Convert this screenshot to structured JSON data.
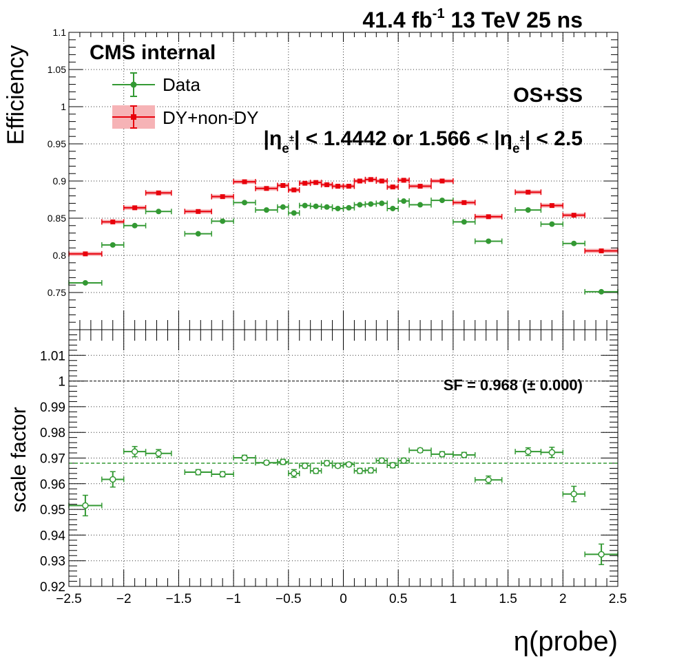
{
  "header": {
    "lumi_value": "41.4 fb",
    "lumi_exp": "-1",
    "lumi_rest": " 13 TeV 25 ns",
    "cms_label": "CMS internal",
    "os_ss_label": "OS+SS",
    "region_part1": "|η",
    "region_sub1": "e",
    "region_sup1": "±",
    "region_part2": "| < 1.4442 or 1.566 < |η",
    "region_sub2": "e",
    "region_sup2": "±",
    "region_part3": "| < 2.5",
    "sf_label": "SF = 0.968 (± 0.000)"
  },
  "legend": {
    "data_label": "Data",
    "mc_label": "DY+non-DY"
  },
  "colors": {
    "data": "#339933",
    "mc": "#e8000b",
    "mc_band": "#f6b3b6",
    "sf_line": "#339933"
  },
  "chart_data": [
    {
      "type": "scatter",
      "panel": "efficiency",
      "ylabel": "Efficiency",
      "xlim": [
        -2.5,
        2.5
      ],
      "ylim": [
        0.7,
        1.1
      ],
      "grid": true,
      "legend_position": "top-left",
      "yticks": [
        0.75,
        0.8,
        0.85,
        0.9,
        0.95,
        1,
        1.05,
        1.1
      ],
      "ytick_labels": [
        "0.75",
        "0.8",
        "0.85",
        "0.9",
        "0.95",
        "1",
        "1.05",
        "1.1"
      ],
      "x_bins": [
        [
          -2.5,
          -2.2
        ],
        [
          -2.2,
          -2.0
        ],
        [
          -2.0,
          -1.8
        ],
        [
          -1.8,
          -1.566
        ],
        [
          -1.4442,
          -1.2
        ],
        [
          -1.2,
          -1.0
        ],
        [
          -1.0,
          -0.8
        ],
        [
          -0.8,
          -0.6
        ],
        [
          -0.6,
          -0.5
        ],
        [
          -0.5,
          -0.4
        ],
        [
          -0.4,
          -0.3
        ],
        [
          -0.3,
          -0.2
        ],
        [
          -0.2,
          -0.1
        ],
        [
          -0.1,
          0.0
        ],
        [
          0.0,
          0.1
        ],
        [
          0.1,
          0.2
        ],
        [
          0.2,
          0.3
        ],
        [
          0.3,
          0.4
        ],
        [
          0.4,
          0.5
        ],
        [
          0.5,
          0.6
        ],
        [
          0.6,
          0.8
        ],
        [
          0.8,
          1.0
        ],
        [
          1.0,
          1.2
        ],
        [
          1.2,
          1.4442
        ],
        [
          1.566,
          1.8
        ],
        [
          1.8,
          2.0
        ],
        [
          2.0,
          2.2
        ],
        [
          2.2,
          2.5
        ]
      ],
      "series": [
        {
          "name": "Data",
          "marker": "circle",
          "values": [
            0.763,
            0.814,
            0.84,
            0.859,
            0.829,
            0.846,
            0.871,
            0.861,
            0.865,
            0.857,
            0.867,
            0.866,
            0.865,
            0.863,
            0.864,
            0.868,
            0.869,
            0.87,
            0.863,
            0.873,
            0.868,
            0.874,
            0.845,
            0.819,
            0.861,
            0.842,
            0.816,
            0.751
          ]
        },
        {
          "name": "DY+non-DY",
          "marker": "square",
          "values": [
            0.802,
            0.845,
            0.864,
            0.884,
            0.859,
            0.879,
            0.899,
            0.89,
            0.894,
            0.888,
            0.897,
            0.898,
            0.895,
            0.893,
            0.893,
            0.9,
            0.902,
            0.9,
            0.892,
            0.901,
            0.893,
            0.9,
            0.871,
            0.852,
            0.885,
            0.867,
            0.854,
            0.806
          ]
        }
      ]
    },
    {
      "type": "scatter",
      "panel": "scale_factor",
      "xlabel": "η(probe)",
      "ylabel": "scale factor",
      "xlim": [
        -2.5,
        2.5
      ],
      "ylim": [
        0.92,
        1.02
      ],
      "grid": true,
      "xticks": [
        -2.5,
        -2,
        -1.5,
        -1,
        -0.5,
        0,
        0.5,
        1,
        1.5,
        2,
        2.5
      ],
      "xtick_labels": [
        "−2.5",
        "−2",
        "−1.5",
        "−1",
        "−0.5",
        "0",
        "0.5",
        "1",
        "1.5",
        "2",
        "2.5"
      ],
      "yticks": [
        0.92,
        0.93,
        0.94,
        0.95,
        0.96,
        0.97,
        0.98,
        0.99,
        1,
        1.01
      ],
      "ytick_labels": [
        "0.92",
        "0.93",
        "0.94",
        "0.95",
        "0.96",
        "0.97",
        "0.98",
        "0.99",
        "1",
        "1.01"
      ],
      "reference_line": 1.0,
      "fit_line": 0.968,
      "series": [
        {
          "name": "SF",
          "marker": "open-circle",
          "values": [
            0.9515,
            0.9617,
            0.9725,
            0.9718,
            0.9645,
            0.9637,
            0.9701,
            0.9682,
            0.9685,
            0.964,
            0.967,
            0.965,
            0.968,
            0.967,
            0.9675,
            0.965,
            0.9652,
            0.969,
            0.9672,
            0.969,
            0.973,
            0.9715,
            0.9712,
            0.9615,
            0.9725,
            0.9722,
            0.956,
            0.9325
          ],
          "errors": [
            0.004,
            0.003,
            0.002,
            0.0015,
            0.001,
            0.001,
            0.001,
            0.0008,
            0.001,
            0.0015,
            0.001,
            0.001,
            0.001,
            0.0008,
            0.0008,
            0.001,
            0.001,
            0.001,
            0.001,
            0.001,
            0.0008,
            0.001,
            0.001,
            0.0015,
            0.0015,
            0.002,
            0.003,
            0.004
          ]
        }
      ]
    }
  ]
}
